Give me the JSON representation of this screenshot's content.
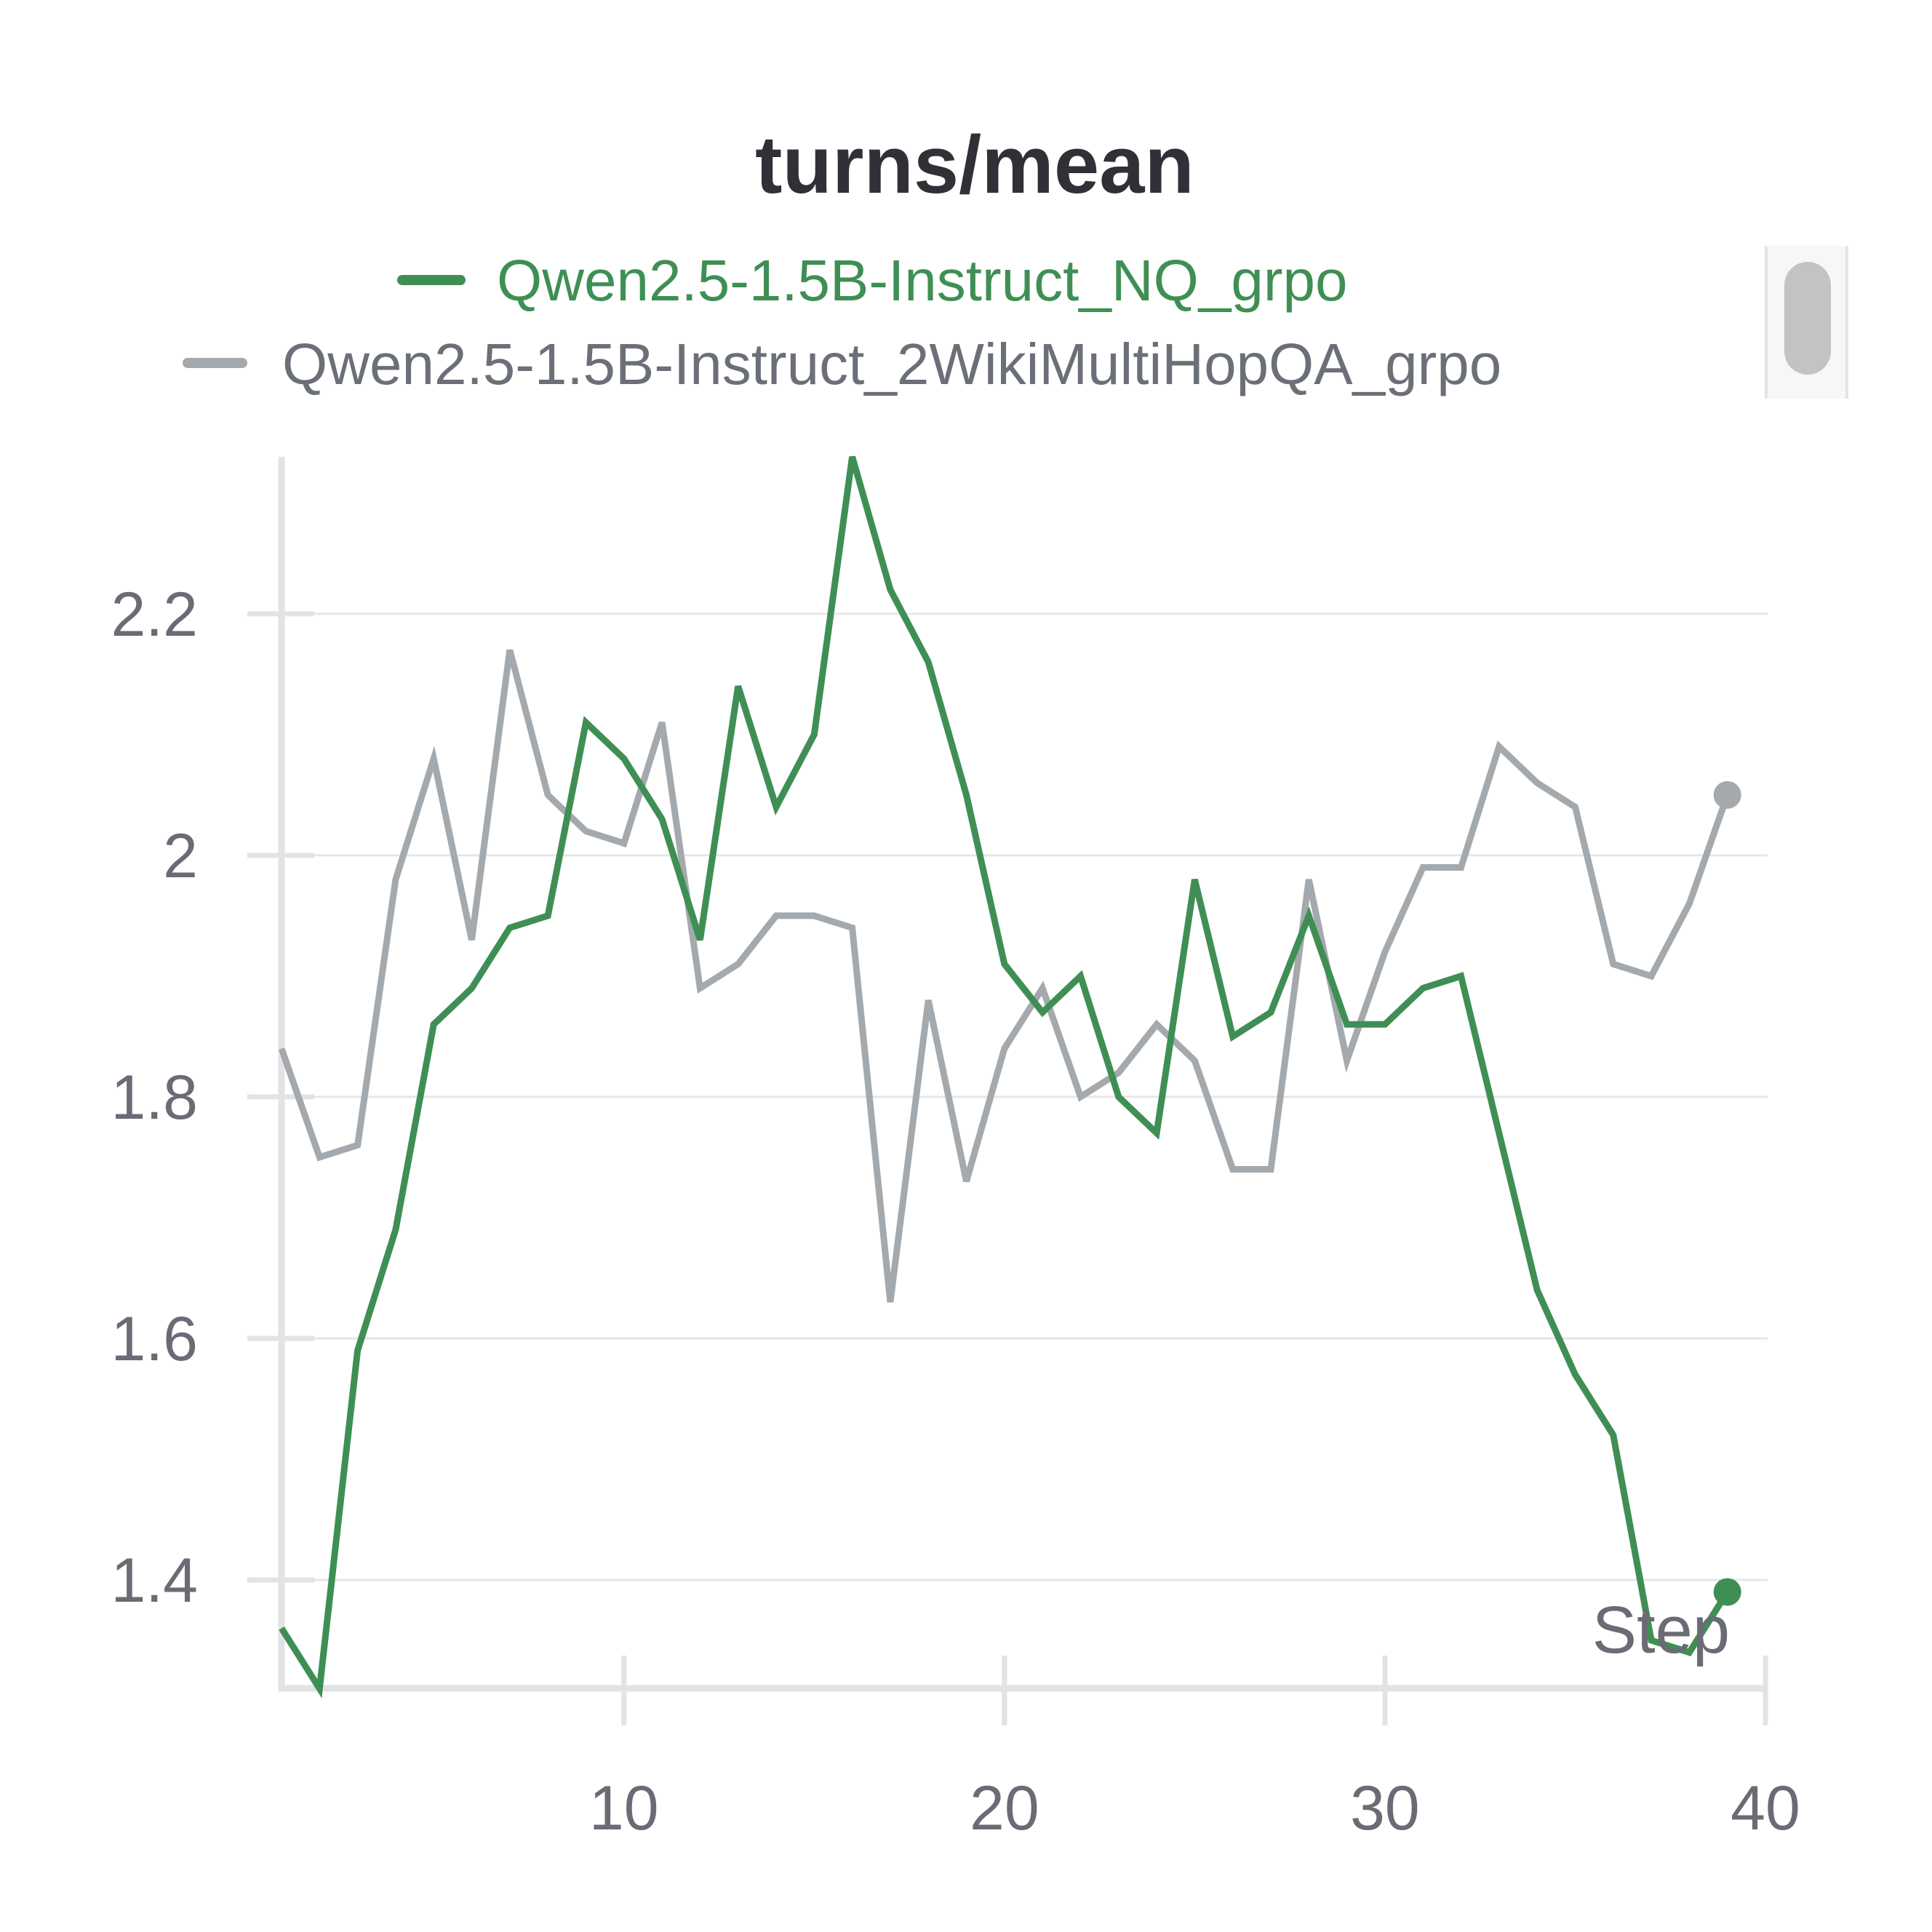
{
  "chart_data": {
    "type": "line",
    "title": "turns/mean",
    "xlabel": "Step",
    "ylabel": "",
    "xlim": [
      1,
      40
    ],
    "ylim": [
      1.3,
      2.33
    ],
    "xticks": [
      10,
      20,
      30,
      40
    ],
    "yticks": [
      1.4,
      1.6,
      1.8,
      2,
      2.2
    ],
    "ytick_labels": [
      "1.4",
      "1.6",
      "1.8",
      "2",
      "2.2"
    ],
    "xtick_labels": [
      "10",
      "20",
      "30",
      "40"
    ],
    "grid": true,
    "legend_position": "top",
    "x": [
      1,
      2,
      3,
      4,
      5,
      6,
      7,
      8,
      9,
      10,
      11,
      12,
      13,
      14,
      15,
      16,
      17,
      18,
      19,
      20,
      21,
      22,
      23,
      24,
      25,
      26,
      27,
      28,
      29,
      30,
      31,
      32,
      33,
      34,
      35,
      36,
      37,
      38,
      39
    ],
    "series": [
      {
        "name": "Qwen2.5-1.5B-Instruct_NQ_grpo",
        "color": "#3f8f55",
        "values": [
          1.36,
          1.31,
          1.59,
          1.69,
          1.86,
          1.89,
          1.94,
          1.95,
          2.11,
          2.08,
          2.03,
          1.93,
          2.14,
          2.04,
          2.1,
          2.33,
          2.22,
          2.16,
          2.05,
          1.91,
          1.87,
          1.9,
          1.8,
          1.77,
          1.98,
          1.85,
          1.87,
          1.95,
          1.86,
          1.86,
          1.89,
          1.9,
          1.77,
          1.64,
          1.57,
          1.52,
          1.35,
          1.34,
          1.39
        ]
      },
      {
        "name": "Qwen2.5-1.5B-Instruct_2WikiMultiHopQA_grpo",
        "color": "#a4a9ad",
        "values": [
          1.84,
          1.75,
          1.76,
          1.98,
          2.08,
          1.93,
          2.17,
          2.05,
          2.02,
          2.01,
          2.11,
          1.89,
          1.91,
          1.95,
          1.95,
          1.94,
          1.63,
          1.88,
          1.73,
          1.84,
          1.89,
          1.8,
          1.82,
          1.86,
          1.83,
          1.74,
          1.74,
          1.98,
          1.83,
          1.92,
          1.99,
          1.99,
          2.09,
          2.06,
          2.04,
          1.91,
          1.9,
          1.96,
          2.05
        ]
      }
    ]
  }
}
